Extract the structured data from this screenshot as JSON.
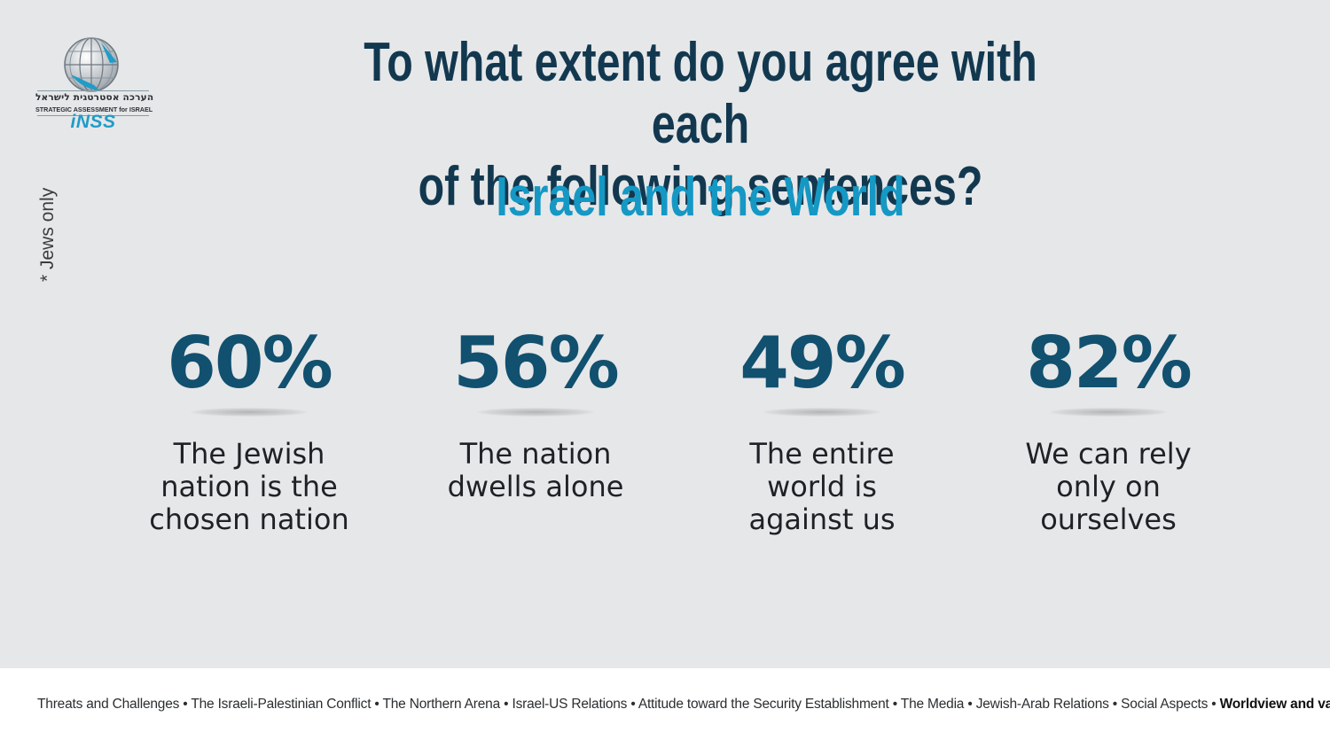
{
  "logo": {
    "hebrew": "הערכה אסטרטגית לישראל",
    "english": "STRATEGIC ASSESSMENT for ISRAEL",
    "brand": "iNSS",
    "icon": "globe-icon"
  },
  "side_note": "* Jews only",
  "title_line1": "To what extent do you agree with each",
  "title_line2": "of the following sentences?",
  "subtitle": "Israel and the World",
  "stats": [
    {
      "value": "60%",
      "label_lines": [
        "The Jewish",
        "nation is the",
        "chosen nation"
      ]
    },
    {
      "value": "56%",
      "label_lines": [
        "The nation",
        "dwells alone",
        ""
      ]
    },
    {
      "value": "49%",
      "label_lines": [
        "The entire",
        "world is",
        "against us"
      ]
    },
    {
      "value": "82%",
      "label_lines": [
        "We can rely",
        "only on",
        "ourselves"
      ]
    }
  ],
  "footer": {
    "items": [
      "Threats and Challenges",
      "The Israeli-Palestinian Conflict",
      "The Northern  Arena",
      "Israel-US Relations",
      "Attitude toward the Security Establishment",
      "The Media",
      "Jewish-Arab Relations",
      "Social Aspects"
    ],
    "active": "Worldview and values",
    "separator": "•"
  },
  "colors": {
    "title": "#12384f",
    "subtitle": "#1598c4",
    "stat_value": "#11506f",
    "background": "#e6e7e9"
  }
}
